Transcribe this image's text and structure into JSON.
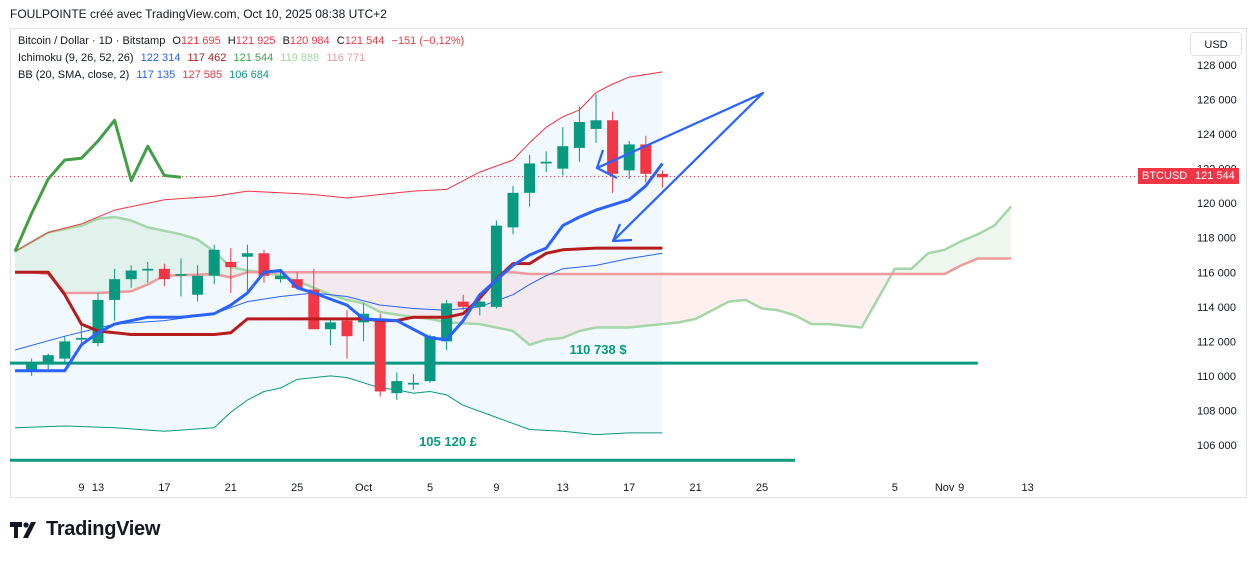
{
  "header": {
    "caption": "FOULPOINTE créé avec TradingView.com, Oct 10, 2025 08:38 UTC+2"
  },
  "legend": {
    "symbol": "Bitcoin / Dollar · 1D · Bitstamp",
    "ohlc": [
      {
        "label": "O",
        "value": "121 695"
      },
      {
        "label": "H",
        "value": "121 925"
      },
      {
        "label": "B",
        "value": "120 984"
      },
      {
        "label": "C",
        "value": "121 544"
      }
    ],
    "change": "−151 (−0,12%)",
    "ichimoku": {
      "name": "Ichimoku (9, 26, 52, 26)",
      "values": [
        "122 314",
        "117 462",
        "121 544",
        "119 888",
        "116 771"
      ]
    },
    "bb": {
      "name": "BB (20, SMA, close, 2)",
      "values": [
        "117 135",
        "127 585",
        "106 684"
      ]
    }
  },
  "currency_button": "USD",
  "price_tag": {
    "symbol": "BTCUSD",
    "value": "121 544"
  },
  "annotations": {
    "level1": "110 738 $",
    "level2": "105 120 £"
  },
  "brand": "TradingView",
  "colors": {
    "up": "#089981",
    "down": "#f23645",
    "tenkan": "#2962ff",
    "kijun": "#b71c1c",
    "span_a": "#a5d6a7",
    "span_b": "#ef9a9a",
    "lagging": "#43a047",
    "bb": "#f23645",
    "bb_basis": "#2962ff",
    "level": "#089981",
    "arrow": "#2962ff"
  },
  "chart_data": {
    "type": "candlestick",
    "y_axis": {
      "ticks": [
        106000,
        108000,
        110000,
        112000,
        114000,
        116000,
        118000,
        120000,
        122000,
        124000,
        126000,
        128000
      ],
      "labels": [
        "106 000",
        "108 000",
        "110 000",
        "112 000",
        "114 000",
        "116 000",
        "118 000",
        "120 000",
        "122 000",
        "124 000",
        "126 000",
        "128 000"
      ]
    },
    "x_axis": {
      "labels": [
        "9",
        "13",
        "17",
        "21",
        "25",
        "Oct",
        "5",
        "9",
        "13",
        "17",
        "21",
        "25",
        "Nov",
        "5",
        "9",
        "13"
      ]
    },
    "candles": [
      [
        1,
        110300,
        111000,
        110000,
        110700
      ],
      [
        2,
        110700,
        111300,
        110400,
        111200
      ],
      [
        3,
        111000,
        112300,
        110800,
        112000
      ],
      [
        4,
        112100,
        113000,
        111700,
        112200
      ],
      [
        5,
        111900,
        114800,
        111700,
        114400
      ],
      [
        6,
        114400,
        116200,
        113200,
        115600
      ],
      [
        7,
        115600,
        116400,
        115100,
        116100
      ],
      [
        8,
        116100,
        116600,
        115400,
        116200
      ],
      [
        9,
        116200,
        116500,
        115200,
        115600
      ],
      [
        10,
        115800,
        116800,
        114600,
        115900
      ],
      [
        11,
        114700,
        116400,
        114300,
        115800
      ],
      [
        12,
        115800,
        117600,
        115300,
        117300
      ],
      [
        13,
        116600,
        117400,
        114800,
        116300
      ],
      [
        14,
        116900,
        117600,
        114900,
        117100
      ],
      [
        15,
        117100,
        117300,
        115400,
        115800
      ],
      [
        16,
        115600,
        116200,
        115400,
        115800
      ],
      [
        17,
        115600,
        116000,
        115000,
        115100
      ],
      [
        18,
        115000,
        116200,
        112800,
        112700
      ],
      [
        19,
        112700,
        113300,
        111800,
        113100
      ],
      [
        20,
        113200,
        113800,
        111000,
        112300
      ],
      [
        21,
        113100,
        114200,
        112000,
        113600
      ],
      [
        22,
        113300,
        113600,
        108800,
        109100
      ],
      [
        23,
        109000,
        110200,
        108600,
        109700
      ],
      [
        24,
        109500,
        110100,
        109200,
        109600
      ],
      [
        25,
        109700,
        112400,
        109600,
        112300
      ],
      [
        26,
        112000,
        114400,
        111500,
        114200
      ],
      [
        27,
        114300,
        114700,
        113800,
        114000
      ],
      [
        28,
        114000,
        114700,
        113500,
        114300
      ],
      [
        29,
        114000,
        119000,
        113900,
        118700
      ],
      [
        30,
        118600,
        121000,
        118200,
        120600
      ],
      [
        31,
        120600,
        122800,
        119800,
        122300
      ],
      [
        32,
        122300,
        123000,
        121800,
        122400
      ],
      [
        33,
        122000,
        124400,
        121600,
        123300
      ],
      [
        34,
        123200,
        125600,
        122400,
        124700
      ],
      [
        35,
        124300,
        126300,
        123500,
        124800
      ],
      [
        36,
        124800,
        125300,
        120600,
        121700
      ],
      [
        37,
        121900,
        123600,
        121400,
        123400
      ],
      [
        38,
        123400,
        123900,
        121200,
        121700
      ],
      [
        39,
        121700,
        121900,
        120900,
        121500
      ]
    ],
    "tenkan": [
      [
        0,
        110300
      ],
      [
        3,
        110300
      ],
      [
        4,
        111800
      ],
      [
        5,
        112500
      ],
      [
        6,
        113000
      ],
      [
        8,
        113400
      ],
      [
        10,
        113400
      ],
      [
        12,
        113600
      ],
      [
        13,
        114100
      ],
      [
        14,
        114800
      ],
      [
        15,
        116000
      ],
      [
        16,
        116100
      ],
      [
        17,
        115100
      ],
      [
        18,
        114800
      ],
      [
        20,
        114100
      ],
      [
        21,
        113300
      ],
      [
        23,
        113200
      ],
      [
        24,
        112700
      ],
      [
        25,
        112200
      ],
      [
        26,
        112100
      ],
      [
        27,
        113200
      ],
      [
        28,
        114700
      ],
      [
        30,
        116400
      ],
      [
        31,
        117000
      ],
      [
        32,
        117400
      ],
      [
        33,
        118700
      ],
      [
        34,
        119200
      ],
      [
        35,
        119600
      ],
      [
        37,
        120200
      ],
      [
        38,
        121000
      ],
      [
        39,
        122300
      ]
    ],
    "kijun": [
      [
        0,
        116000
      ],
      [
        2,
        116000
      ],
      [
        3,
        114700
      ],
      [
        4,
        113000
      ],
      [
        5,
        112600
      ],
      [
        7,
        112400
      ],
      [
        12,
        112400
      ],
      [
        13,
        112500
      ],
      [
        14,
        113300
      ],
      [
        21,
        113300
      ],
      [
        22,
        113200
      ],
      [
        23,
        113200
      ],
      [
        24,
        113400
      ],
      [
        26,
        113400
      ],
      [
        27,
        113600
      ],
      [
        28,
        114500
      ],
      [
        29,
        115600
      ],
      [
        30,
        116500
      ],
      [
        31,
        116500
      ],
      [
        32,
        117100
      ],
      [
        33,
        117300
      ],
      [
        35,
        117400
      ],
      [
        39,
        117400
      ]
    ],
    "span_a": [
      [
        0,
        117200
      ],
      [
        2,
        118300
      ],
      [
        4,
        118700
      ],
      [
        5,
        119100
      ],
      [
        6,
        119200
      ],
      [
        7,
        119000
      ],
      [
        8,
        118600
      ],
      [
        9,
        118400
      ],
      [
        10,
        118200
      ],
      [
        11,
        117900
      ],
      [
        12,
        117200
      ],
      [
        13,
        116300
      ],
      [
        14,
        116100
      ],
      [
        15,
        116000
      ],
      [
        16,
        115800
      ],
      [
        17,
        115500
      ],
      [
        18,
        115100
      ],
      [
        19,
        114700
      ],
      [
        20,
        114400
      ],
      [
        21,
        114200
      ],
      [
        22,
        113700
      ],
      [
        24,
        113400
      ],
      [
        25,
        113300
      ],
      [
        26,
        113100
      ],
      [
        28,
        113000
      ],
      [
        29,
        112800
      ],
      [
        30,
        112600
      ],
      [
        31,
        111800
      ],
      [
        32,
        112100
      ],
      [
        33,
        112200
      ],
      [
        34,
        112600
      ],
      [
        35,
        112800
      ],
      [
        36,
        112800
      ],
      [
        37,
        112800
      ],
      [
        38,
        112900
      ],
      [
        39,
        113000
      ],
      [
        40,
        113100
      ],
      [
        41,
        113300
      ],
      [
        42,
        113800
      ],
      [
        43,
        114300
      ],
      [
        44,
        114400
      ],
      [
        45,
        113900
      ],
      [
        46,
        113800
      ],
      [
        47,
        113500
      ],
      [
        48,
        113000
      ],
      [
        49,
        113000
      ],
      [
        50,
        112900
      ],
      [
        51,
        112800
      ],
      [
        52,
        114500
      ],
      [
        53,
        116200
      ],
      [
        54,
        116200
      ],
      [
        55,
        117100
      ],
      [
        56,
        117300
      ],
      [
        57,
        117800
      ],
      [
        58,
        118200
      ],
      [
        59,
        118700
      ],
      [
        60,
        119800
      ]
    ],
    "span_b": [
      [
        0,
        116000
      ],
      [
        1,
        116000
      ],
      [
        2,
        115900
      ],
      [
        3,
        114800
      ],
      [
        5,
        114800
      ],
      [
        7,
        114900
      ],
      [
        8,
        115300
      ],
      [
        9,
        115800
      ],
      [
        12,
        115900
      ],
      [
        13,
        115700
      ],
      [
        14,
        116000
      ],
      [
        30,
        116000
      ],
      [
        31,
        115900
      ],
      [
        56,
        115900
      ],
      [
        57,
        116400
      ],
      [
        58,
        116800
      ],
      [
        60,
        116800
      ]
    ],
    "lagging": [
      [
        0,
        117200
      ],
      [
        1,
        119400
      ],
      [
        2,
        121400
      ],
      [
        3,
        122500
      ],
      [
        4,
        122600
      ],
      [
        5,
        123600
      ],
      [
        6,
        124800
      ],
      [
        7,
        121300
      ],
      [
        8,
        123300
      ],
      [
        9,
        121600
      ],
      [
        10,
        121500
      ]
    ],
    "bb_upper": [
      [
        0,
        117200
      ],
      [
        2,
        118300
      ],
      [
        4,
        118800
      ],
      [
        6,
        119600
      ],
      [
        9,
        120200
      ],
      [
        12,
        120400
      ],
      [
        14,
        120700
      ],
      [
        16,
        120600
      ],
      [
        18,
        120500
      ],
      [
        20,
        120300
      ],
      [
        22,
        120500
      ],
      [
        24,
        120700
      ],
      [
        26,
        120800
      ],
      [
        27,
        121300
      ],
      [
        28,
        121800
      ],
      [
        30,
        122500
      ],
      [
        31,
        123500
      ],
      [
        32,
        124400
      ],
      [
        33,
        125000
      ],
      [
        34,
        125400
      ],
      [
        35,
        126400
      ],
      [
        36,
        126900
      ],
      [
        37,
        127300
      ],
      [
        39,
        127600
      ]
    ],
    "bb_basis": [
      [
        0,
        111500
      ],
      [
        3,
        112300
      ],
      [
        6,
        113000
      ],
      [
        9,
        113200
      ],
      [
        12,
        113600
      ],
      [
        14,
        114300
      ],
      [
        16,
        114600
      ],
      [
        18,
        114800
      ],
      [
        20,
        114600
      ],
      [
        22,
        114100
      ],
      [
        24,
        113900
      ],
      [
        26,
        113800
      ],
      [
        28,
        114000
      ],
      [
        30,
        114700
      ],
      [
        31,
        115300
      ],
      [
        32,
        115800
      ],
      [
        33,
        116200
      ],
      [
        35,
        116400
      ],
      [
        37,
        116800
      ],
      [
        39,
        117100
      ]
    ],
    "bb_lower": [
      [
        0,
        107000
      ],
      [
        3,
        107100
      ],
      [
        6,
        107000
      ],
      [
        9,
        106800
      ],
      [
        12,
        107000
      ],
      [
        13,
        107900
      ],
      [
        14,
        108600
      ],
      [
        15,
        109100
      ],
      [
        16,
        109300
      ],
      [
        17,
        109800
      ],
      [
        19,
        110000
      ],
      [
        20,
        109900
      ],
      [
        21,
        109600
      ],
      [
        22,
        109300
      ],
      [
        23,
        109200
      ],
      [
        24,
        109000
      ],
      [
        25,
        109100
      ],
      [
        26,
        108900
      ],
      [
        27,
        108300
      ],
      [
        29,
        107600
      ],
      [
        31,
        106900
      ],
      [
        33,
        106800
      ],
      [
        35,
        106600
      ],
      [
        37,
        106700
      ],
      [
        39,
        106700
      ]
    ],
    "levels": [
      {
        "y": 110738,
        "x_start": 0,
        "x_end": 58
      },
      {
        "y": 105120,
        "x_start": 0,
        "x_end": 47
      }
    ],
    "current_price": 121544
  }
}
